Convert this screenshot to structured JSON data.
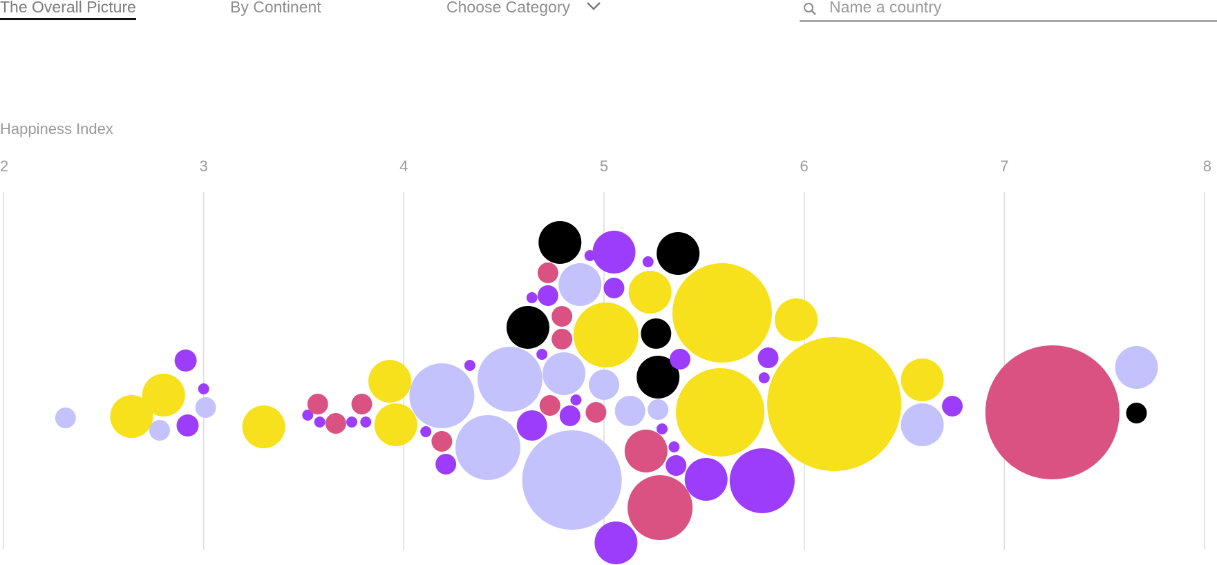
{
  "nav": {
    "tabs": [
      {
        "label": "The Overall Picture",
        "active": true
      },
      {
        "label": "By Continent",
        "active": false
      }
    ],
    "category_label": "Choose Category",
    "search_placeholder": "Name a country"
  },
  "colors": {
    "yellow": "#f6e11c",
    "lavender": "#c4c2fc",
    "purple": "#9b3dfa",
    "pink": "#da5281",
    "black": "#000000",
    "gridline": "#dcdcdc"
  },
  "chart_data": {
    "type": "scatter",
    "xlabel": "Happiness Index",
    "ylabel": "",
    "xlim": [
      2,
      8
    ],
    "xticks": [
      2,
      3,
      4,
      5,
      6,
      7,
      8
    ],
    "grid": true,
    "points": [
      {
        "x": 2.31,
        "r": 15,
        "y": 605,
        "c": "lavender"
      },
      {
        "x": 2.64,
        "r": 31,
        "y": 603,
        "c": "yellow"
      },
      {
        "x": 2.8,
        "r": 31,
        "y": 572,
        "c": "yellow"
      },
      {
        "x": 2.78,
        "r": 15,
        "y": 623,
        "c": "lavender"
      },
      {
        "x": 2.91,
        "r": 16,
        "y": 522,
        "c": "purple"
      },
      {
        "x": 2.92,
        "r": 16,
        "y": 616,
        "c": "purple"
      },
      {
        "x": 3.0,
        "r": 8,
        "y": 563,
        "c": "purple"
      },
      {
        "x": 3.01,
        "r": 15,
        "y": 590,
        "c": "lavender"
      },
      {
        "x": 3.3,
        "r": 31,
        "y": 618,
        "c": "yellow"
      },
      {
        "x": 3.52,
        "r": 8,
        "y": 601,
        "c": "purple"
      },
      {
        "x": 3.57,
        "r": 15,
        "y": 585,
        "c": "pink"
      },
      {
        "x": 3.58,
        "r": 8,
        "y": 611,
        "c": "purple"
      },
      {
        "x": 3.66,
        "r": 15,
        "y": 613,
        "c": "pink"
      },
      {
        "x": 3.74,
        "r": 8,
        "y": 611,
        "c": "purple"
      },
      {
        "x": 3.79,
        "r": 15,
        "y": 585,
        "c": "pink"
      },
      {
        "x": 3.81,
        "r": 8,
        "y": 611,
        "c": "purple"
      },
      {
        "x": 3.93,
        "r": 31,
        "y": 552,
        "c": "yellow"
      },
      {
        "x": 3.96,
        "r": 31,
        "y": 615,
        "c": "yellow"
      },
      {
        "x": 4.11,
        "r": 8,
        "y": 625,
        "c": "purple"
      },
      {
        "x": 4.19,
        "r": 47,
        "y": 573,
        "c": "lavender"
      },
      {
        "x": 4.19,
        "r": 15,
        "y": 639,
        "c": "pink"
      },
      {
        "x": 4.21,
        "r": 15,
        "y": 672,
        "c": "purple"
      },
      {
        "x": 4.33,
        "r": 8,
        "y": 529,
        "c": "purple"
      },
      {
        "x": 4.42,
        "r": 47,
        "y": 648,
        "c": "lavender"
      },
      {
        "x": 4.53,
        "r": 47,
        "y": 549,
        "c": "lavender"
      },
      {
        "x": 4.64,
        "r": 8,
        "y": 431,
        "c": "purple"
      },
      {
        "x": 4.64,
        "r": 22,
        "y": 616,
        "c": "purple"
      },
      {
        "x": 4.62,
        "r": 31,
        "y": 474,
        "c": "black"
      },
      {
        "x": 4.69,
        "r": 8,
        "y": 513,
        "c": "purple"
      },
      {
        "x": 4.72,
        "r": 15,
        "y": 395,
        "c": "pink"
      },
      {
        "x": 4.72,
        "r": 15,
        "y": 428,
        "c": "purple"
      },
      {
        "x": 4.73,
        "r": 15,
        "y": 587,
        "c": "pink"
      },
      {
        "x": 4.78,
        "r": 31,
        "y": 351,
        "c": "black"
      },
      {
        "x": 4.79,
        "r": 15,
        "y": 458,
        "c": "pink"
      },
      {
        "x": 4.79,
        "r": 15,
        "y": 491,
        "c": "pink"
      },
      {
        "x": 4.8,
        "r": 31,
        "y": 541,
        "c": "lavender"
      },
      {
        "x": 4.83,
        "r": 15,
        "y": 602,
        "c": "purple"
      },
      {
        "x": 4.84,
        "r": 72,
        "y": 695,
        "c": "lavender"
      },
      {
        "x": 4.86,
        "r": 8,
        "y": 579,
        "c": "purple"
      },
      {
        "x": 4.88,
        "r": 31,
        "y": 412,
        "c": "lavender"
      },
      {
        "x": 4.93,
        "r": 8,
        "y": 370,
        "c": "purple"
      },
      {
        "x": 4.96,
        "r": 15,
        "y": 597,
        "c": "pink"
      },
      {
        "x": 5.0,
        "r": 22,
        "y": 557,
        "c": "lavender"
      },
      {
        "x": 5.01,
        "r": 47,
        "y": 485,
        "c": "yellow"
      },
      {
        "x": 5.05,
        "r": 15,
        "y": 417,
        "c": "purple"
      },
      {
        "x": 5.05,
        "r": 31,
        "y": 365,
        "c": "purple"
      },
      {
        "x": 5.06,
        "r": 31,
        "y": 786,
        "c": "purple"
      },
      {
        "x": 5.13,
        "r": 22,
        "y": 595,
        "c": "lavender"
      },
      {
        "x": 5.21,
        "r": 31,
        "y": 653,
        "c": "pink"
      },
      {
        "x": 5.22,
        "r": 8,
        "y": 379,
        "c": "purple"
      },
      {
        "x": 5.23,
        "r": 31,
        "y": 423,
        "c": "yellow"
      },
      {
        "x": 5.26,
        "r": 22,
        "y": 483,
        "c": "black"
      },
      {
        "x": 5.27,
        "r": 31,
        "y": 546,
        "c": "black"
      },
      {
        "x": 5.27,
        "r": 15,
        "y": 593,
        "c": "lavender"
      },
      {
        "x": 5.29,
        "r": 8,
        "y": 621,
        "c": "purple"
      },
      {
        "x": 5.28,
        "r": 47,
        "y": 735,
        "c": "pink"
      },
      {
        "x": 5.35,
        "r": 8,
        "y": 647,
        "c": "purple"
      },
      {
        "x": 5.36,
        "r": 15,
        "y": 674,
        "c": "purple"
      },
      {
        "x": 5.37,
        "r": 31,
        "y": 367,
        "c": "black"
      },
      {
        "x": 5.38,
        "r": 15,
        "y": 520,
        "c": "purple"
      },
      {
        "x": 5.51,
        "r": 31,
        "y": 694,
        "c": "purple"
      },
      {
        "x": 5.58,
        "r": 64,
        "y": 597,
        "c": "yellow"
      },
      {
        "x": 5.59,
        "r": 72,
        "y": 453,
        "c": "yellow"
      },
      {
        "x": 5.79,
        "r": 47,
        "y": 696,
        "c": "purple"
      },
      {
        "x": 5.8,
        "r": 8,
        "y": 547,
        "c": "purple"
      },
      {
        "x": 5.82,
        "r": 15,
        "y": 518,
        "c": "purple"
      },
      {
        "x": 5.96,
        "r": 31,
        "y": 463,
        "c": "yellow"
      },
      {
        "x": 6.15,
        "r": 97,
        "y": 585,
        "c": "yellow"
      },
      {
        "x": 6.59,
        "r": 31,
        "y": 550,
        "c": "yellow"
      },
      {
        "x": 6.59,
        "r": 31,
        "y": 615,
        "c": "lavender"
      },
      {
        "x": 6.74,
        "r": 15,
        "y": 588,
        "c": "purple"
      },
      {
        "x": 7.24,
        "r": 97,
        "y": 597,
        "c": "pink"
      },
      {
        "x": 7.66,
        "r": 31,
        "y": 532,
        "c": "lavender"
      },
      {
        "x": 7.66,
        "r": 15,
        "y": 598,
        "c": "black"
      }
    ]
  }
}
